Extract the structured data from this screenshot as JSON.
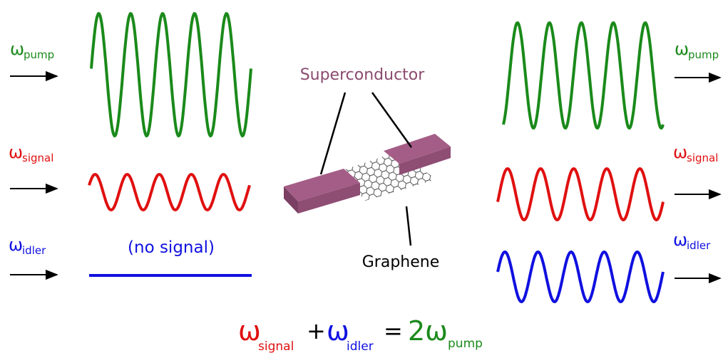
{
  "inputs": [
    {
      "symbol": "ω",
      "subscript": "pump"
    },
    {
      "symbol": "ω",
      "subscript": "signal"
    },
    {
      "symbol": "ω",
      "subscript": "idler"
    }
  ],
  "no_signal": "(no signal)",
  "outputs": [
    {
      "symbol": "ω",
      "subscript": "pump"
    },
    {
      "symbol": "ω",
      "subscript": "signal"
    },
    {
      "symbol": "ω",
      "subscript": "idler"
    }
  ],
  "device": {
    "superconductor": "Superconductor",
    "graphene": "Graphene"
  },
  "equation": [
    "ω",
    "signal",
    "+",
    "ω",
    "idler",
    "=",
    "2ω",
    "pump"
  ]
}
